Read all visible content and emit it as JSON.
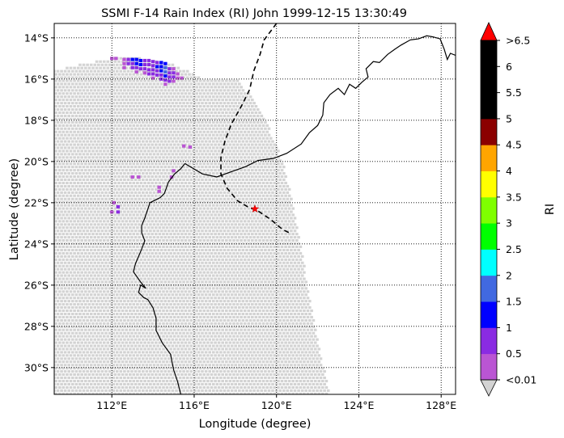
{
  "chart_data": {
    "type": "map-heatmap",
    "title": "SSMI F-14 Rain Index (RI) John 1999-12-15 13:30:49",
    "xlabel": "Longitude (degree)",
    "ylabel": "Latitude (degree)",
    "x_range_deg_e": [
      109.2,
      128.7
    ],
    "y_range_deg_s": [
      13.3,
      31.3
    ],
    "x_ticks": [
      {
        "value": 112,
        "label": "112°E"
      },
      {
        "value": 116,
        "label": "116°E"
      },
      {
        "value": 120,
        "label": "120°E"
      },
      {
        "value": 124,
        "label": "124°E"
      },
      {
        "value": 128,
        "label": "128°E"
      }
    ],
    "y_ticks": [
      {
        "value": 14,
        "label": "14°S"
      },
      {
        "value": 16,
        "label": "16°S"
      },
      {
        "value": 18,
        "label": "18°S"
      },
      {
        "value": 20,
        "label": "20°S"
      },
      {
        "value": 22,
        "label": "22°S"
      },
      {
        "value": 24,
        "label": "24°S"
      },
      {
        "value": 26,
        "label": "26°S"
      },
      {
        "value": 28,
        "label": "28°S"
      },
      {
        "value": 30,
        "label": "30°S"
      }
    ],
    "grid": true,
    "no_rain_color": "#d3d3d3",
    "swath_edge_lon_at_lat": [
      [
        118.2,
        16.0
      ],
      [
        119.5,
        18.0
      ],
      [
        120.3,
        20.0
      ],
      [
        120.8,
        22.0
      ],
      [
        121.2,
        24.0
      ],
      [
        121.5,
        26.0
      ],
      [
        121.9,
        28.0
      ],
      [
        122.3,
        30.0
      ],
      [
        122.6,
        31.3
      ]
    ],
    "swath_top_boundary": [
      [
        109.2,
        15.6
      ],
      [
        110.5,
        15.3
      ],
      [
        112.0,
        15.0
      ],
      [
        113.5,
        15.0
      ],
      [
        115.0,
        15.3
      ],
      [
        116.5,
        16.0
      ],
      [
        118.2,
        16.0
      ]
    ],
    "rain_pixels": [
      {
        "lon": 112.0,
        "lat": 15.0,
        "ri": 0.3
      },
      {
        "lon": 112.2,
        "lat": 15.0,
        "ri": 0.3
      },
      {
        "lon": 112.6,
        "lat": 15.05,
        "ri": 0.3
      },
      {
        "lon": 112.8,
        "lat": 15.05,
        "ri": 0.7
      },
      {
        "lon": 113.0,
        "lat": 15.05,
        "ri": 1.2
      },
      {
        "lon": 113.2,
        "lat": 15.05,
        "ri": 1.2
      },
      {
        "lon": 113.4,
        "lat": 15.1,
        "ri": 1.2
      },
      {
        "lon": 113.6,
        "lat": 15.1,
        "ri": 0.7
      },
      {
        "lon": 113.8,
        "lat": 15.1,
        "ri": 0.7
      },
      {
        "lon": 114.0,
        "lat": 15.15,
        "ri": 0.7
      },
      {
        "lon": 114.2,
        "lat": 15.2,
        "ri": 0.7
      },
      {
        "lon": 114.4,
        "lat": 15.2,
        "ri": 1.2
      },
      {
        "lon": 114.6,
        "lat": 15.25,
        "ri": 1.2
      },
      {
        "lon": 112.6,
        "lat": 15.25,
        "ri": 0.3
      },
      {
        "lon": 112.8,
        "lat": 15.25,
        "ri": 0.7
      },
      {
        "lon": 113.0,
        "lat": 15.25,
        "ri": 0.7
      },
      {
        "lon": 113.2,
        "lat": 15.25,
        "ri": 1.2
      },
      {
        "lon": 113.4,
        "lat": 15.3,
        "ri": 1.2
      },
      {
        "lon": 113.6,
        "lat": 15.3,
        "ri": 0.7
      },
      {
        "lon": 113.8,
        "lat": 15.3,
        "ri": 0.7
      },
      {
        "lon": 114.0,
        "lat": 15.35,
        "ri": 0.7
      },
      {
        "lon": 114.2,
        "lat": 15.4,
        "ri": 1.2
      },
      {
        "lon": 114.4,
        "lat": 15.4,
        "ri": 1.2
      },
      {
        "lon": 114.6,
        "lat": 15.45,
        "ri": 1.7
      },
      {
        "lon": 114.8,
        "lat": 15.5,
        "ri": 0.7
      },
      {
        "lon": 115.0,
        "lat": 15.5,
        "ri": 0.3
      },
      {
        "lon": 112.6,
        "lat": 15.45,
        "ri": 0.3
      },
      {
        "lon": 113.0,
        "lat": 15.45,
        "ri": 0.7
      },
      {
        "lon": 113.2,
        "lat": 15.45,
        "ri": 0.7
      },
      {
        "lon": 113.4,
        "lat": 15.5,
        "ri": 0.7
      },
      {
        "lon": 113.6,
        "lat": 15.5,
        "ri": 0.7
      },
      {
        "lon": 113.8,
        "lat": 15.55,
        "ri": 0.7
      },
      {
        "lon": 114.0,
        "lat": 15.55,
        "ri": 0.7
      },
      {
        "lon": 114.2,
        "lat": 15.6,
        "ri": 0.7
      },
      {
        "lon": 114.4,
        "lat": 15.6,
        "ri": 1.2
      },
      {
        "lon": 114.6,
        "lat": 15.65,
        "ri": 1.7
      },
      {
        "lon": 114.8,
        "lat": 15.7,
        "ri": 0.7
      },
      {
        "lon": 115.0,
        "lat": 15.7,
        "ri": 0.7
      },
      {
        "lon": 115.2,
        "lat": 15.75,
        "ri": 0.3
      },
      {
        "lon": 113.2,
        "lat": 15.65,
        "ri": 0.3
      },
      {
        "lon": 113.6,
        "lat": 15.7,
        "ri": 0.3
      },
      {
        "lon": 113.8,
        "lat": 15.75,
        "ri": 0.7
      },
      {
        "lon": 114.0,
        "lat": 15.75,
        "ri": 0.7
      },
      {
        "lon": 114.2,
        "lat": 15.8,
        "ri": 0.7
      },
      {
        "lon": 114.4,
        "lat": 15.8,
        "ri": 0.7
      },
      {
        "lon": 114.6,
        "lat": 15.85,
        "ri": 1.2
      },
      {
        "lon": 114.8,
        "lat": 15.9,
        "ri": 0.7
      },
      {
        "lon": 115.0,
        "lat": 15.9,
        "ri": 0.7
      },
      {
        "lon": 115.2,
        "lat": 15.95,
        "ri": 0.3
      },
      {
        "lon": 115.4,
        "lat": 15.95,
        "ri": 0.3
      },
      {
        "lon": 114.0,
        "lat": 15.95,
        "ri": 0.3
      },
      {
        "lon": 114.4,
        "lat": 16.0,
        "ri": 0.7
      },
      {
        "lon": 114.6,
        "lat": 16.05,
        "ri": 0.7
      },
      {
        "lon": 114.8,
        "lat": 16.1,
        "ri": 0.7
      },
      {
        "lon": 115.0,
        "lat": 16.1,
        "ri": 0.3
      },
      {
        "lon": 114.6,
        "lat": 16.25,
        "ri": 0.3
      },
      {
        "lon": 115.5,
        "lat": 19.25,
        "ri": 0.3
      },
      {
        "lon": 115.8,
        "lat": 19.3,
        "ri": 0.3
      },
      {
        "lon": 115.0,
        "lat": 20.45,
        "ri": 0.3
      },
      {
        "lon": 114.9,
        "lat": 20.75,
        "ri": 0.3
      },
      {
        "lon": 113.0,
        "lat": 20.75,
        "ri": 0.3
      },
      {
        "lon": 113.3,
        "lat": 20.75,
        "ri": 0.3
      },
      {
        "lon": 114.3,
        "lat": 21.25,
        "ri": 0.3
      },
      {
        "lon": 114.3,
        "lat": 21.45,
        "ri": 0.3
      },
      {
        "lon": 112.1,
        "lat": 22.0,
        "ri": 0.3
      },
      {
        "lon": 112.3,
        "lat": 22.2,
        "ri": 0.7
      },
      {
        "lon": 112.0,
        "lat": 22.45,
        "ri": 0.3
      },
      {
        "lon": 112.3,
        "lat": 22.45,
        "ri": 0.7
      }
    ],
    "coastline_australia": [
      [
        115.55,
        20.1
      ],
      [
        115.35,
        20.35
      ],
      [
        115.05,
        20.6
      ],
      [
        114.75,
        21.0
      ],
      [
        114.55,
        21.55
      ],
      [
        114.35,
        21.75
      ],
      [
        114.05,
        21.9
      ],
      [
        113.85,
        22.0
      ],
      [
        113.7,
        22.45
      ],
      [
        113.6,
        22.75
      ],
      [
        113.45,
        23.1
      ],
      [
        113.45,
        23.45
      ],
      [
        113.6,
        23.85
      ],
      [
        113.45,
        24.25
      ],
      [
        113.3,
        24.6
      ],
      [
        113.15,
        24.95
      ],
      [
        113.05,
        25.35
      ],
      [
        113.4,
        25.85
      ],
      [
        113.65,
        26.15
      ],
      [
        113.4,
        26.0
      ],
      [
        113.3,
        26.35
      ],
      [
        113.55,
        26.6
      ],
      [
        113.75,
        26.7
      ],
      [
        114.0,
        27.1
      ],
      [
        114.15,
        27.6
      ],
      [
        114.15,
        28.2
      ],
      [
        114.45,
        28.8
      ],
      [
        114.85,
        29.35
      ],
      [
        115.0,
        30.1
      ],
      [
        115.2,
        30.7
      ],
      [
        115.35,
        31.3
      ]
    ],
    "coastline_north": [
      [
        115.55,
        20.1
      ],
      [
        116.4,
        20.6
      ],
      [
        117.1,
        20.75
      ],
      [
        117.8,
        20.5
      ],
      [
        118.5,
        20.25
      ],
      [
        119.1,
        19.95
      ],
      [
        119.85,
        19.85
      ],
      [
        120.5,
        19.6
      ],
      [
        121.2,
        19.15
      ],
      [
        121.6,
        18.6
      ],
      [
        122.0,
        18.25
      ],
      [
        122.25,
        17.75
      ],
      [
        122.3,
        17.15
      ],
      [
        122.6,
        16.75
      ],
      [
        123.0,
        16.45
      ],
      [
        123.3,
        16.75
      ],
      [
        123.55,
        16.25
      ],
      [
        123.85,
        16.45
      ],
      [
        124.15,
        16.15
      ],
      [
        124.45,
        15.9
      ],
      [
        124.35,
        15.5
      ],
      [
        124.7,
        15.15
      ],
      [
        125.0,
        15.2
      ],
      [
        125.4,
        14.8
      ],
      [
        125.75,
        14.55
      ],
      [
        126.05,
        14.35
      ],
      [
        126.5,
        14.1
      ],
      [
        126.9,
        14.05
      ],
      [
        127.3,
        13.9
      ],
      [
        127.6,
        13.95
      ],
      [
        127.95,
        14.05
      ],
      [
        128.15,
        14.55
      ],
      [
        128.3,
        15.05
      ],
      [
        128.45,
        14.75
      ],
      [
        128.7,
        14.85
      ]
    ],
    "storm_track": [
      [
        120.0,
        13.3
      ],
      [
        119.4,
        14.1
      ],
      [
        119.2,
        14.8
      ],
      [
        118.9,
        15.6
      ],
      [
        118.7,
        16.5
      ],
      [
        118.3,
        17.3
      ],
      [
        117.8,
        18.2
      ],
      [
        117.5,
        19.0
      ],
      [
        117.3,
        19.8
      ],
      [
        117.3,
        20.6
      ],
      [
        117.6,
        21.3
      ],
      [
        118.1,
        21.9
      ],
      [
        118.6,
        22.2
      ],
      [
        119.1,
        22.4
      ],
      [
        119.7,
        22.8
      ],
      [
        120.3,
        23.3
      ],
      [
        120.7,
        23.5
      ]
    ],
    "storm_position": {
      "lon": 118.95,
      "lat": 22.3,
      "marker": "star"
    },
    "colorbar": {
      "label": "RI",
      "levels": [
        {
          "label": "<0.01",
          "color": "#ba55d3"
        },
        {
          "label": "0.5",
          "color": "#8a2be2"
        },
        {
          "label": "1",
          "color": "#0000ff"
        },
        {
          "label": "1.5",
          "color": "#4169e1"
        },
        {
          "label": "2",
          "color": "#00ffff"
        },
        {
          "label": "2.5",
          "color": "#00ff00"
        },
        {
          "label": "3",
          "color": "#7fff00"
        },
        {
          "label": "3.5",
          "color": "#ffff00"
        },
        {
          "label": "4",
          "color": "#ffa500"
        },
        {
          "label": "4.5",
          "color": "#8b0000"
        },
        {
          "label": "5",
          "color": "#000000"
        },
        {
          "label": "5.5",
          "color": "#000000"
        },
        {
          "label": "6",
          "color": "#000000"
        },
        {
          "label": ">6.5",
          "color": "#ff0000"
        }
      ],
      "under_color": "#d3d3d3",
      "over_color": "#ff0000"
    }
  }
}
